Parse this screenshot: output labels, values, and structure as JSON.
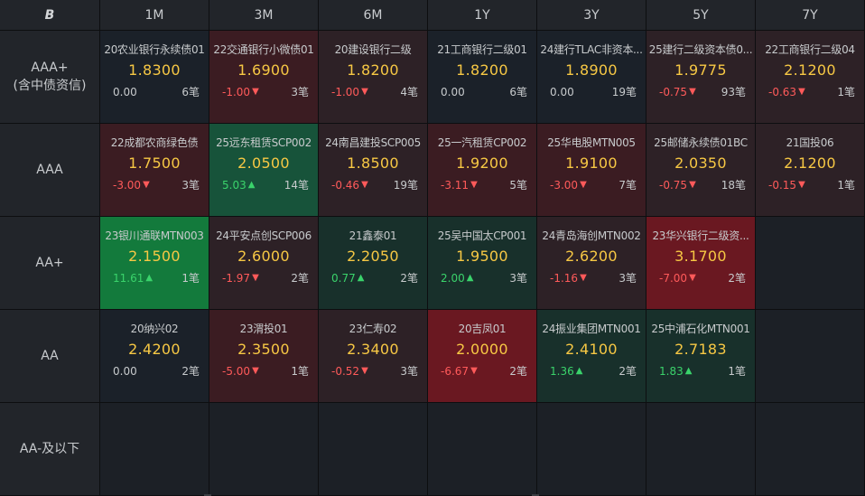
{
  "logo": "B",
  "columns": [
    "1M",
    "3M",
    "6M",
    "1Y",
    "3Y",
    "5Y",
    "7Y"
  ],
  "rows": [
    {
      "label": "AAA+",
      "sublabel": "(含中债资信)",
      "cells": [
        {
          "name": "20农业银行永续债01",
          "price": "1.8300",
          "change": "0.00",
          "dir": "flat",
          "count": "6笔",
          "tone": "neutral"
        },
        {
          "name": "22交通银行小微债01",
          "price": "1.6900",
          "change": "-1.00",
          "dir": "down",
          "count": "3笔",
          "tone": "down2"
        },
        {
          "name": "20建设银行二级",
          "price": "1.8200",
          "change": "-1.00",
          "dir": "down",
          "count": "4笔",
          "tone": "down1"
        },
        {
          "name": "21工商银行二级01",
          "price": "1.8200",
          "change": "0.00",
          "dir": "flat",
          "count": "6笔",
          "tone": "neutral"
        },
        {
          "name": "24建行TLAC非资本...",
          "price": "1.8900",
          "change": "0.00",
          "dir": "flat",
          "count": "19笔",
          "tone": "neutral"
        },
        {
          "name": "25建行二级资本债0...",
          "price": "1.9775",
          "change": "-0.75",
          "dir": "down",
          "count": "93笔",
          "tone": "down1"
        },
        {
          "name": "22工商银行二级04",
          "price": "2.1200",
          "change": "-0.63",
          "dir": "down",
          "count": "1笔",
          "tone": "down1"
        }
      ]
    },
    {
      "label": "AAA",
      "sublabel": "",
      "cells": [
        {
          "name": "22成都农商绿色债",
          "price": "1.7500",
          "change": "-3.00",
          "dir": "down",
          "count": "3笔",
          "tone": "down2"
        },
        {
          "name": "25远东租赁SCP002",
          "price": "2.0500",
          "change": "5.03",
          "dir": "up",
          "count": "14笔",
          "tone": "up2"
        },
        {
          "name": "24南昌建投SCP005",
          "price": "1.8500",
          "change": "-0.46",
          "dir": "down",
          "count": "19笔",
          "tone": "down1"
        },
        {
          "name": "25一汽租赁CP002",
          "price": "1.9200",
          "change": "-3.11",
          "dir": "down",
          "count": "5笔",
          "tone": "down2"
        },
        {
          "name": "25华电股MTN005",
          "price": "1.9100",
          "change": "-3.00",
          "dir": "down",
          "count": "7笔",
          "tone": "down2"
        },
        {
          "name": "25邮储永续债01BC",
          "price": "2.0350",
          "change": "-0.75",
          "dir": "down",
          "count": "18笔",
          "tone": "down1"
        },
        {
          "name": "21国投06",
          "price": "2.1200",
          "change": "-0.15",
          "dir": "down",
          "count": "1笔",
          "tone": "down1"
        }
      ]
    },
    {
      "label": "AA+",
      "sublabel": "",
      "cells": [
        {
          "name": "23银川通联MTN003",
          "price": "2.1500",
          "change": "11.61",
          "dir": "up",
          "count": "1笔",
          "tone": "up3"
        },
        {
          "name": "24平安点创SCP006",
          "price": "2.6000",
          "change": "-1.97",
          "dir": "down",
          "count": "2笔",
          "tone": "down1"
        },
        {
          "name": "21鑫泰01",
          "price": "2.2050",
          "change": "0.77",
          "dir": "up",
          "count": "2笔",
          "tone": "up1"
        },
        {
          "name": "25吴中国太CP001",
          "price": "1.9500",
          "change": "2.00",
          "dir": "up",
          "count": "3笔",
          "tone": "up1"
        },
        {
          "name": "24青岛海创MTN002",
          "price": "2.6200",
          "change": "-1.16",
          "dir": "down",
          "count": "3笔",
          "tone": "down1"
        },
        {
          "name": "23华兴银行二级资...",
          "price": "3.1700",
          "change": "-7.00",
          "dir": "down",
          "count": "2笔",
          "tone": "down3"
        },
        null
      ]
    },
    {
      "label": "AA",
      "sublabel": "",
      "cells": [
        {
          "name": "20纳兴02",
          "price": "2.4200",
          "change": "0.00",
          "dir": "flat",
          "count": "2笔",
          "tone": "neutral"
        },
        {
          "name": "23渭投01",
          "price": "2.3500",
          "change": "-5.00",
          "dir": "down",
          "count": "1笔",
          "tone": "down2"
        },
        {
          "name": "23仁寿02",
          "price": "2.3400",
          "change": "-0.52",
          "dir": "down",
          "count": "3笔",
          "tone": "down1"
        },
        {
          "name": "20吉凤01",
          "price": "2.0000",
          "change": "-6.67",
          "dir": "down",
          "count": "2笔",
          "tone": "down3"
        },
        {
          "name": "24振业集团MTN001",
          "price": "2.4100",
          "change": "1.36",
          "dir": "up",
          "count": "2笔",
          "tone": "up1"
        },
        {
          "name": "25中浦石化MTN001",
          "price": "2.7183",
          "change": "1.83",
          "dir": "up",
          "count": "1笔",
          "tone": "up1"
        },
        null
      ]
    },
    {
      "label": "AA-及以下",
      "sublabel": "",
      "cells": [
        null,
        null,
        null,
        null,
        null,
        null,
        null
      ]
    }
  ],
  "colors": {
    "up_text": "#3ad36b",
    "down_text": "#ff5a5a",
    "price_text": "#f7c844"
  }
}
